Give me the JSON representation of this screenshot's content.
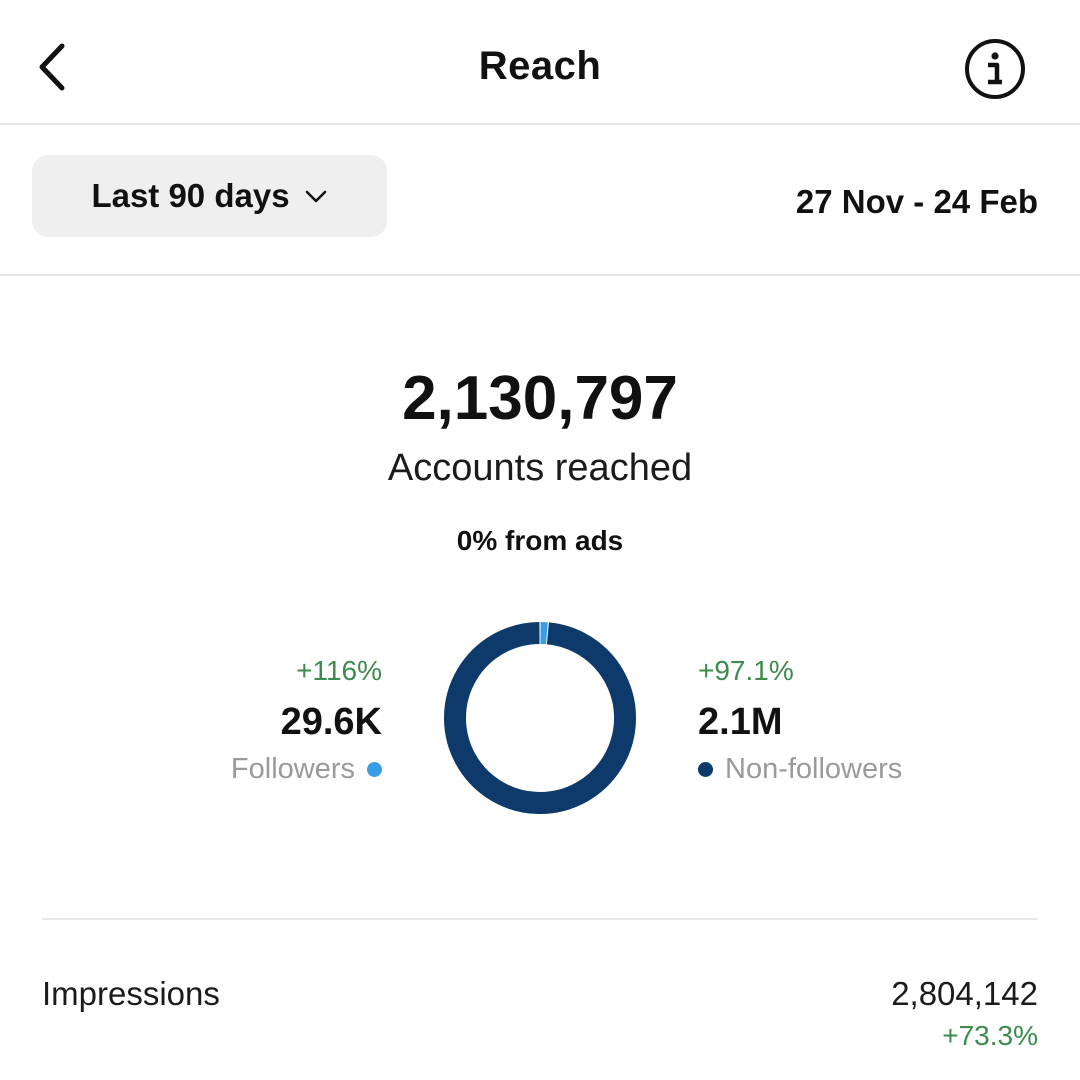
{
  "header": {
    "title": "Reach",
    "back_icon": "chevron-left-icon",
    "info_icon": "info-circle-icon"
  },
  "filter": {
    "range_label": "Last 90 days",
    "range_icon": "chevron-down-icon",
    "date_range": "27 Nov - 24 Feb"
  },
  "summary": {
    "total": "2,130,797",
    "total_label": "Accounts reached",
    "ads_note": "0% from ads"
  },
  "breakdown": {
    "followers": {
      "delta": "+116%",
      "value": "29.6K",
      "label": "Followers",
      "color": "#3a9ee6"
    },
    "non_followers": {
      "delta": "+97.1%",
      "value": "2.1M",
      "label": "Non-followers",
      "color": "#0d3a6b"
    }
  },
  "chart_data": {
    "type": "pie",
    "donut": true,
    "categories": [
      "Followers",
      "Non-followers"
    ],
    "values": [
      29.6,
      2100
    ],
    "units": "thousand accounts",
    "colors": [
      "#3a9ee6",
      "#0d3a6b"
    ]
  },
  "impressions": {
    "label": "Impressions",
    "value": "2,804,142",
    "delta": "+73.3%"
  },
  "colors": {
    "positive": "#3d8b4f",
    "muted": "#9a9a9a",
    "divider": "#e6e6e6"
  }
}
